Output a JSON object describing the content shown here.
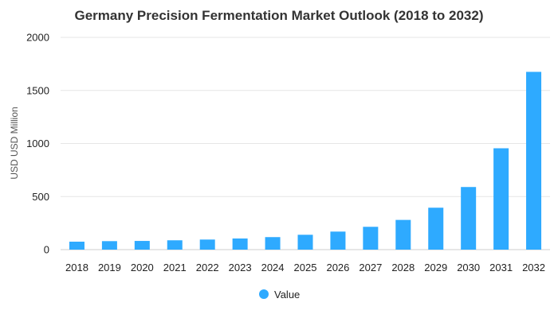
{
  "chart_data": {
    "type": "bar",
    "title": "Germany Precision Fermentation Market Outlook (2018 to 2032)",
    "xlabel": "",
    "ylabel": "USD USD Million",
    "ylim": [
      0,
      2000
    ],
    "yticks": [
      0,
      500,
      1000,
      1500,
      2000
    ],
    "grid": true,
    "legend_position": "bottom",
    "categories": [
      "2018",
      "2019",
      "2020",
      "2021",
      "2022",
      "2023",
      "2024",
      "2025",
      "2026",
      "2027",
      "2028",
      "2029",
      "2030",
      "2031",
      "2032"
    ],
    "series": [
      {
        "name": "Value",
        "color": "#2eaaff",
        "values": [
          75,
          80,
          82,
          88,
          95,
          105,
          118,
          140,
          170,
          215,
          280,
          395,
          590,
          955,
          1675
        ]
      }
    ]
  }
}
